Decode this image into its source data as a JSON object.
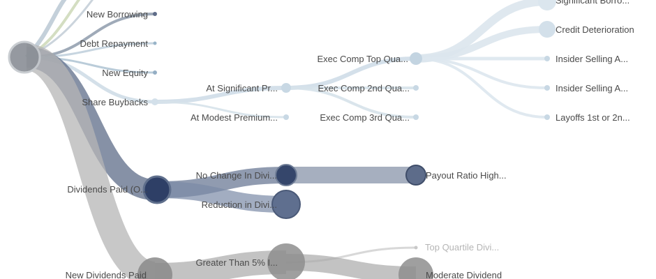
{
  "tree": {
    "nodes": {
      "new_borrowing": {
        "label": "New Borrowing"
      },
      "debt_repayment": {
        "label": "Debt Repayment"
      },
      "new_equity": {
        "label": "New Equity"
      },
      "share_buybacks": {
        "label": "Share Buybacks"
      },
      "at_significant": {
        "label": "At Significant Pr..."
      },
      "at_modest": {
        "label": "At Modest Premium..."
      },
      "exec_top": {
        "label": "Exec Comp Top Qua..."
      },
      "exec_2nd": {
        "label": "Exec Comp 2nd Qua..."
      },
      "exec_3rd": {
        "label": "Exec Comp 3rd Qua..."
      },
      "significant_borro": {
        "label": "Significant Borro..."
      },
      "credit_deterioration": {
        "label": "Credit Deterioration"
      },
      "insider_selling_a1": {
        "label": "Insider Selling A..."
      },
      "insider_selling_a2": {
        "label": "Insider Selling A..."
      },
      "layoffs": {
        "label": "Layoffs 1st or 2n..."
      },
      "dividends_paid": {
        "label": "Dividends Paid (O..."
      },
      "no_change_div": {
        "label": "No Change In Divi..."
      },
      "reduction_div": {
        "label": "Reduction in Divi..."
      },
      "payout_ratio": {
        "label": "Payout Ratio High..."
      },
      "new_dividends_paid": {
        "label": "New Dividends Paid"
      },
      "greater_than_5": {
        "label": "Greater Than 5% I..."
      },
      "top_quartile_div": {
        "label": "Top Quartile Divi..."
      },
      "moderate_dividend": {
        "label": "Moderate Dividend"
      }
    }
  }
}
